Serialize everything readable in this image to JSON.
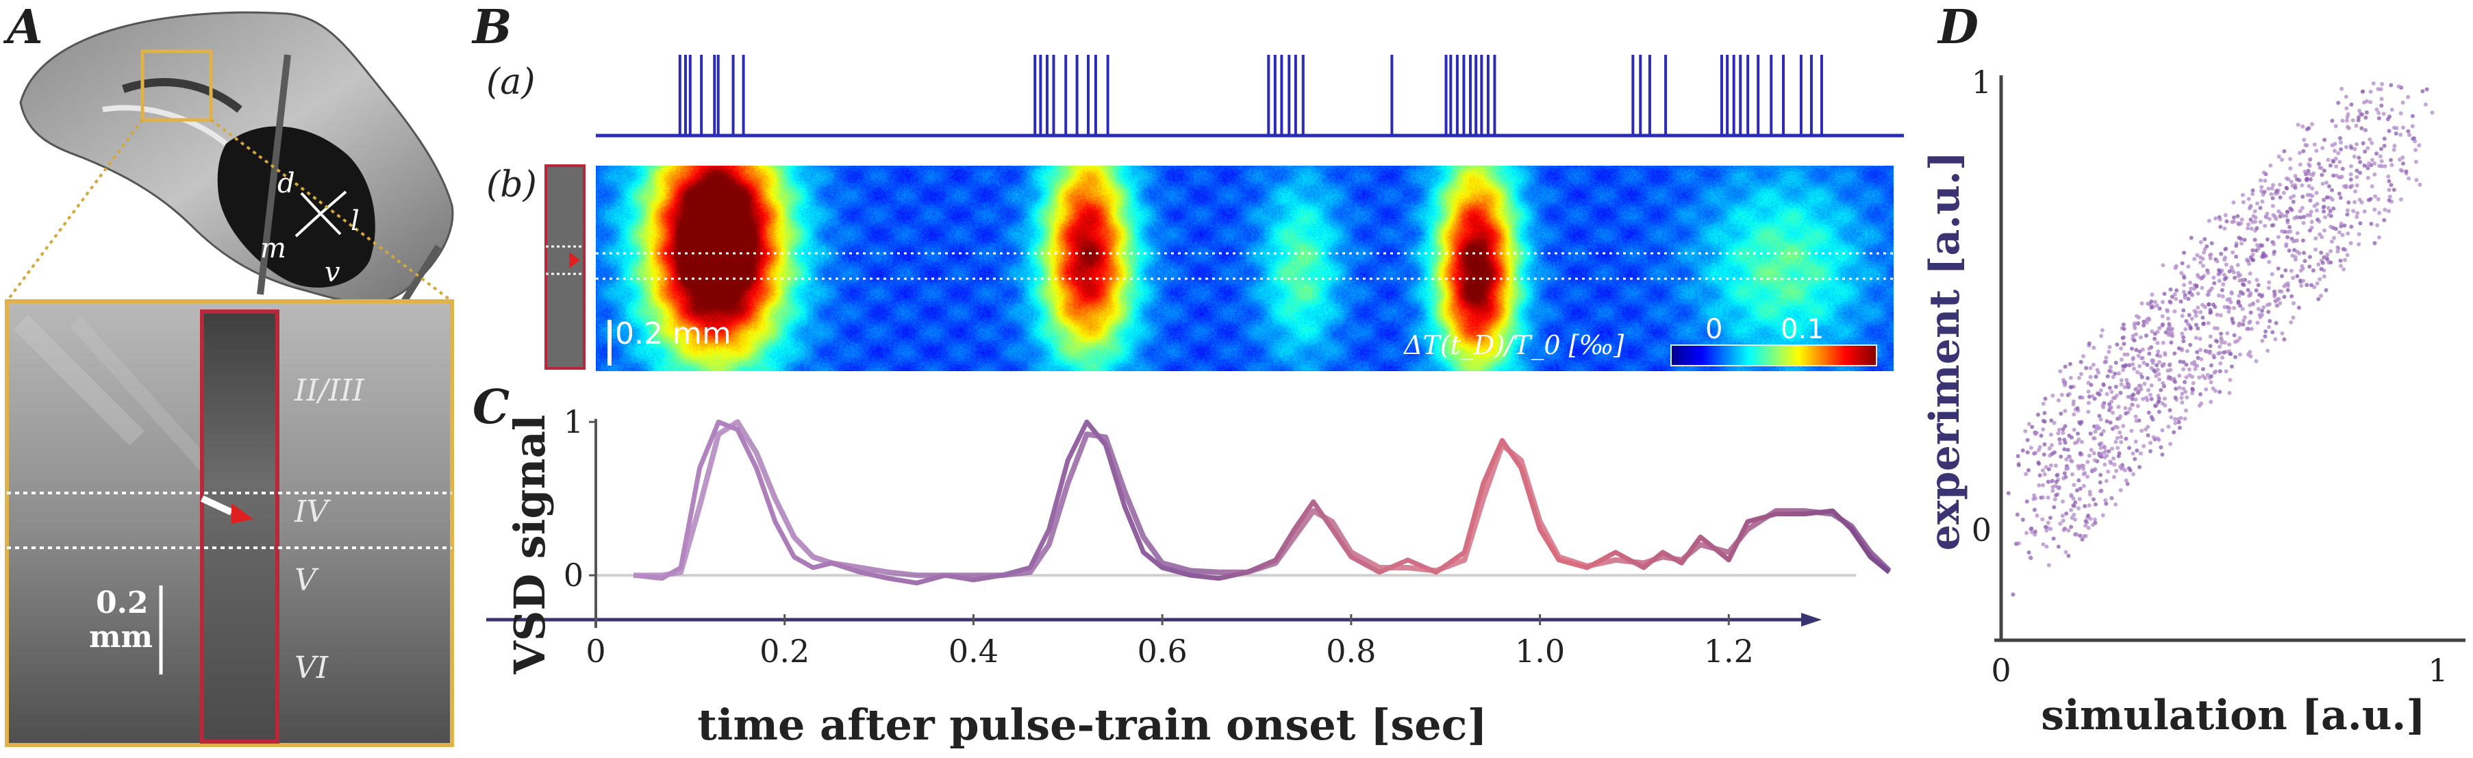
{
  "panels": {
    "A": "A",
    "B": "B",
    "C": "C",
    "D": "D"
  },
  "panelA": {
    "directions": {
      "d": "d",
      "l": "l",
      "m": "m",
      "v": "v"
    },
    "layers": [
      "II/III",
      "IV",
      "V",
      "VI"
    ],
    "scale_value": "0.2",
    "scale_unit": "mm",
    "colors": {
      "frame": "#e0b34a",
      "strip": "#b8283a",
      "arrow": "#e02020"
    }
  },
  "panelB": {
    "sub_a": "(a)",
    "sub_b": "(b)",
    "scale_label": "0.2 mm",
    "colorbar_label": "ΔT(t_D)/T_0 [‰]",
    "colorbar_ticks": [
      "0",
      "0.1"
    ],
    "pulse_times": [
      0.09,
      0.096,
      0.101,
      0.113,
      0.127,
      0.131,
      0.147,
      0.158,
      0.47,
      0.476,
      0.483,
      0.49,
      0.503,
      0.515,
      0.527,
      0.535,
      0.548,
      0.72,
      0.727,
      0.734,
      0.742,
      0.749,
      0.757,
      0.852,
      0.91,
      0.915,
      0.922,
      0.929,
      0.936,
      0.942,
      0.948,
      0.955,
      0.962,
      1.11,
      1.118,
      1.128,
      1.145,
      1.205,
      1.211,
      1.218,
      1.225,
      1.233,
      1.244,
      1.258,
      1.271,
      1.29,
      1.301,
      1.312
    ],
    "activity_blobs": [
      {
        "t": 0.13,
        "layer": 0.2,
        "w": 0.05,
        "amp": 1.0
      },
      {
        "t": 0.13,
        "layer": 0.6,
        "w": 0.05,
        "amp": 0.9
      },
      {
        "t": 0.53,
        "layer": 0.55,
        "w": 0.035,
        "amp": 0.8
      },
      {
        "t": 0.53,
        "layer": 0.15,
        "w": 0.03,
        "amp": 0.45
      },
      {
        "t": 0.76,
        "layer": 0.5,
        "w": 0.03,
        "amp": 0.35
      },
      {
        "t": 0.95,
        "layer": 0.6,
        "w": 0.03,
        "amp": 0.95
      },
      {
        "t": 0.95,
        "layer": 0.2,
        "w": 0.03,
        "amp": 0.4
      },
      {
        "t": 1.28,
        "layer": 0.5,
        "w": 0.06,
        "amp": 0.35
      }
    ]
  },
  "chart_data": [
    {
      "type": "line",
      "panel": "C",
      "title": "",
      "xlabel": "time after pulse-train onset [sec]",
      "ylabel": "VSD signal",
      "xlim": [
        0,
        1.4
      ],
      "ylim": [
        -0.2,
        1.05
      ],
      "xticks": [
        "0",
        "0.2",
        "0.4",
        "0.6",
        "0.8",
        "1.0",
        "1.2"
      ],
      "yticks": [
        "0",
        "1"
      ],
      "series": [
        {
          "name": "experiment",
          "x": [
            0.04,
            0.07,
            0.09,
            0.11,
            0.13,
            0.15,
            0.17,
            0.19,
            0.21,
            0.23,
            0.25,
            0.28,
            0.31,
            0.34,
            0.37,
            0.4,
            0.43,
            0.46,
            0.48,
            0.5,
            0.52,
            0.54,
            0.56,
            0.58,
            0.6,
            0.63,
            0.66,
            0.69,
            0.72,
            0.74,
            0.76,
            0.78,
            0.8,
            0.83,
            0.86,
            0.89,
            0.92,
            0.94,
            0.96,
            0.98,
            1.0,
            1.02,
            1.05,
            1.08,
            1.11,
            1.13,
            1.15,
            1.17,
            1.2,
            1.22,
            1.25,
            1.28,
            1.31,
            1.33,
            1.35,
            1.37
          ],
          "y": [
            0,
            -0.02,
            0.05,
            0.7,
            1.0,
            0.95,
            0.7,
            0.35,
            0.12,
            0.05,
            0.08,
            0.02,
            -0.02,
            -0.05,
            0.0,
            -0.03,
            0.0,
            0.05,
            0.3,
            0.75,
            1.0,
            0.85,
            0.45,
            0.15,
            0.05,
            0.0,
            -0.02,
            0.02,
            0.1,
            0.3,
            0.48,
            0.3,
            0.12,
            0.02,
            0.1,
            0.02,
            0.15,
            0.6,
            0.88,
            0.7,
            0.3,
            0.1,
            0.05,
            0.15,
            0.05,
            0.15,
            0.08,
            0.25,
            0.1,
            0.35,
            0.4,
            0.4,
            0.42,
            0.3,
            0.12,
            0.02
          ]
        },
        {
          "name": "simulation",
          "x": [
            0.04,
            0.07,
            0.09,
            0.11,
            0.13,
            0.15,
            0.17,
            0.19,
            0.21,
            0.23,
            0.25,
            0.28,
            0.31,
            0.34,
            0.37,
            0.4,
            0.43,
            0.46,
            0.48,
            0.5,
            0.52,
            0.54,
            0.56,
            0.58,
            0.6,
            0.63,
            0.66,
            0.69,
            0.72,
            0.74,
            0.76,
            0.78,
            0.8,
            0.83,
            0.86,
            0.89,
            0.92,
            0.94,
            0.96,
            0.98,
            1.0,
            1.02,
            1.05,
            1.08,
            1.11,
            1.13,
            1.15,
            1.17,
            1.2,
            1.22,
            1.25,
            1.28,
            1.31,
            1.33,
            1.35,
            1.37
          ],
          "y": [
            0,
            0,
            0.02,
            0.45,
            0.92,
            1.0,
            0.8,
            0.5,
            0.25,
            0.12,
            0.08,
            0.05,
            0.02,
            0.0,
            0.0,
            0.0,
            0.0,
            0.02,
            0.2,
            0.6,
            0.92,
            0.9,
            0.55,
            0.25,
            0.08,
            0.03,
            0.02,
            0.02,
            0.08,
            0.25,
            0.42,
            0.35,
            0.15,
            0.05,
            0.05,
            0.03,
            0.1,
            0.5,
            0.85,
            0.75,
            0.35,
            0.12,
            0.06,
            0.1,
            0.08,
            0.12,
            0.1,
            0.2,
            0.15,
            0.3,
            0.42,
            0.42,
            0.4,
            0.32,
            0.15,
            0.03
          ]
        }
      ]
    },
    {
      "type": "scatter",
      "panel": "D",
      "title": "",
      "xlabel": "simulation [a.u.]",
      "ylabel": "experiment [a.u.]",
      "xlim": [
        0,
        1
      ],
      "ylim": [
        -0.2,
        1.0
      ],
      "xticks": [
        "0",
        "1"
      ],
      "yticks": [
        "0",
        "1"
      ],
      "note": "dense cloud of points along the diagonal (correlation between simulated and measured VSD signal)"
    }
  ]
}
